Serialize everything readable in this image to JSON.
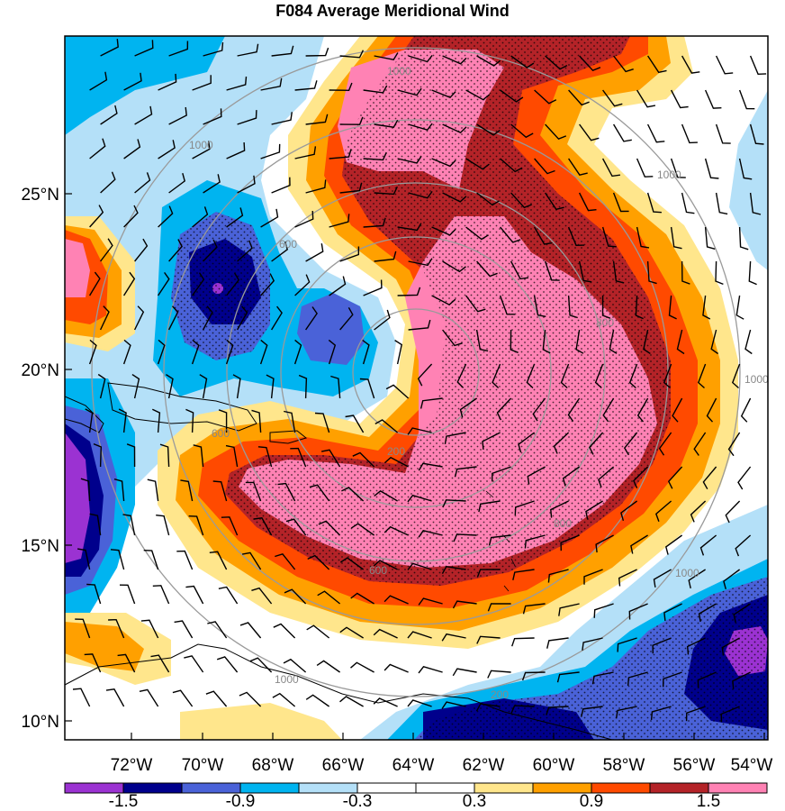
{
  "title": "F084 Average Meridional Wind",
  "lon_labels": [
    "72°W",
    "70°W",
    "68°W",
    "66°W",
    "64°W",
    "62°W",
    "60°W",
    "58°W",
    "56°W",
    "54°W"
  ],
  "lat_labels": [
    "25°N",
    "20°N",
    "15°N",
    "10°N"
  ],
  "range_ring_labels": [
    "200",
    "600",
    "800",
    "1000",
    "1000",
    "1000",
    "1000",
    "1000",
    "600",
    "600",
    "800",
    "1000",
    "200"
  ],
  "colorbar": {
    "colors": [
      "#9b32d2",
      "#00008c",
      "#4a62d8",
      "#00b4f0",
      "#b4e0f8",
      "#ffffff",
      "#ffffff",
      "#ffe68c",
      "#ffa000",
      "#ff4a00",
      "#b42328",
      "#ff82b4"
    ],
    "tick_labels": [
      "-1.5",
      "-0.9",
      "-0.3",
      "0.3",
      "0.9",
      "1.5"
    ]
  }
}
